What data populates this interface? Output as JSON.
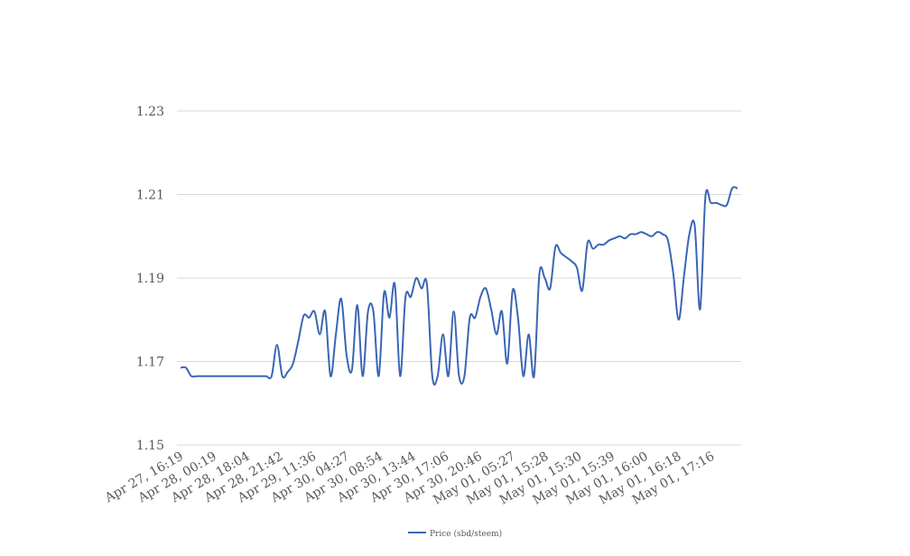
{
  "chart_data": {
    "type": "line",
    "title": "",
    "xlabel": "",
    "ylabel": "",
    "ylim": [
      1.15,
      1.23
    ],
    "yticks": [
      "1.15",
      "1.17",
      "1.19",
      "1.21",
      "1.23"
    ],
    "grid": true,
    "legend_position": "bottom",
    "x_tick_labels": [
      "Apr 27, 16:19",
      "Apr 28, 00:19",
      "Apr 28, 18:04",
      "Apr 28, 21:42",
      "Apr 29, 11:36",
      "Apr 30, 04:27",
      "Apr 30, 08:54",
      "Apr 30, 13:44",
      "Apr 30, 17:06",
      "Apr 30, 20:46",
      "May 01, 05:27",
      "May 01, 15:28",
      "May 01, 15:30",
      "May 01, 15:39",
      "May 01, 16:00",
      "May 01, 16:18",
      "May 01, 17:16"
    ],
    "series": [
      {
        "name": "Price (sbd/steem)",
        "color": "#3a66b5",
        "values": [
          1.1685,
          1.1685,
          1.1665,
          1.1665,
          1.1665,
          1.1665,
          1.1665,
          1.1665,
          1.1665,
          1.1665,
          1.1665,
          1.1665,
          1.1665,
          1.1665,
          1.1665,
          1.1665,
          1.1665,
          1.1665,
          1.174,
          1.1665,
          1.1675,
          1.1695,
          1.175,
          1.181,
          1.1805,
          1.182,
          1.1765,
          1.182,
          1.1665,
          1.1765,
          1.185,
          1.1715,
          1.168,
          1.1835,
          1.1665,
          1.182,
          1.182,
          1.1665,
          1.1865,
          1.1805,
          1.1885,
          1.1665,
          1.1855,
          1.1855,
          1.19,
          1.1875,
          1.1885,
          1.1665,
          1.1665,
          1.1765,
          1.1665,
          1.182,
          1.1665,
          1.1665,
          1.1805,
          1.1805,
          1.1855,
          1.1875,
          1.1825,
          1.1765,
          1.182,
          1.1695,
          1.187,
          1.1805,
          1.1665,
          1.1765,
          1.1665,
          1.191,
          1.19,
          1.1875,
          1.1975,
          1.196,
          1.195,
          1.194,
          1.1925,
          1.187,
          1.1985,
          1.197,
          1.198,
          1.198,
          1.199,
          1.1995,
          1.2,
          1.1995,
          1.2005,
          1.2005,
          1.201,
          1.2005,
          1.2,
          1.201,
          1.2005,
          1.199,
          1.191,
          1.18,
          1.1905,
          1.2005,
          1.2025,
          1.1825,
          1.2095,
          1.208,
          1.208,
          1.2075,
          1.2075,
          1.2115,
          1.2115
        ]
      }
    ]
  }
}
